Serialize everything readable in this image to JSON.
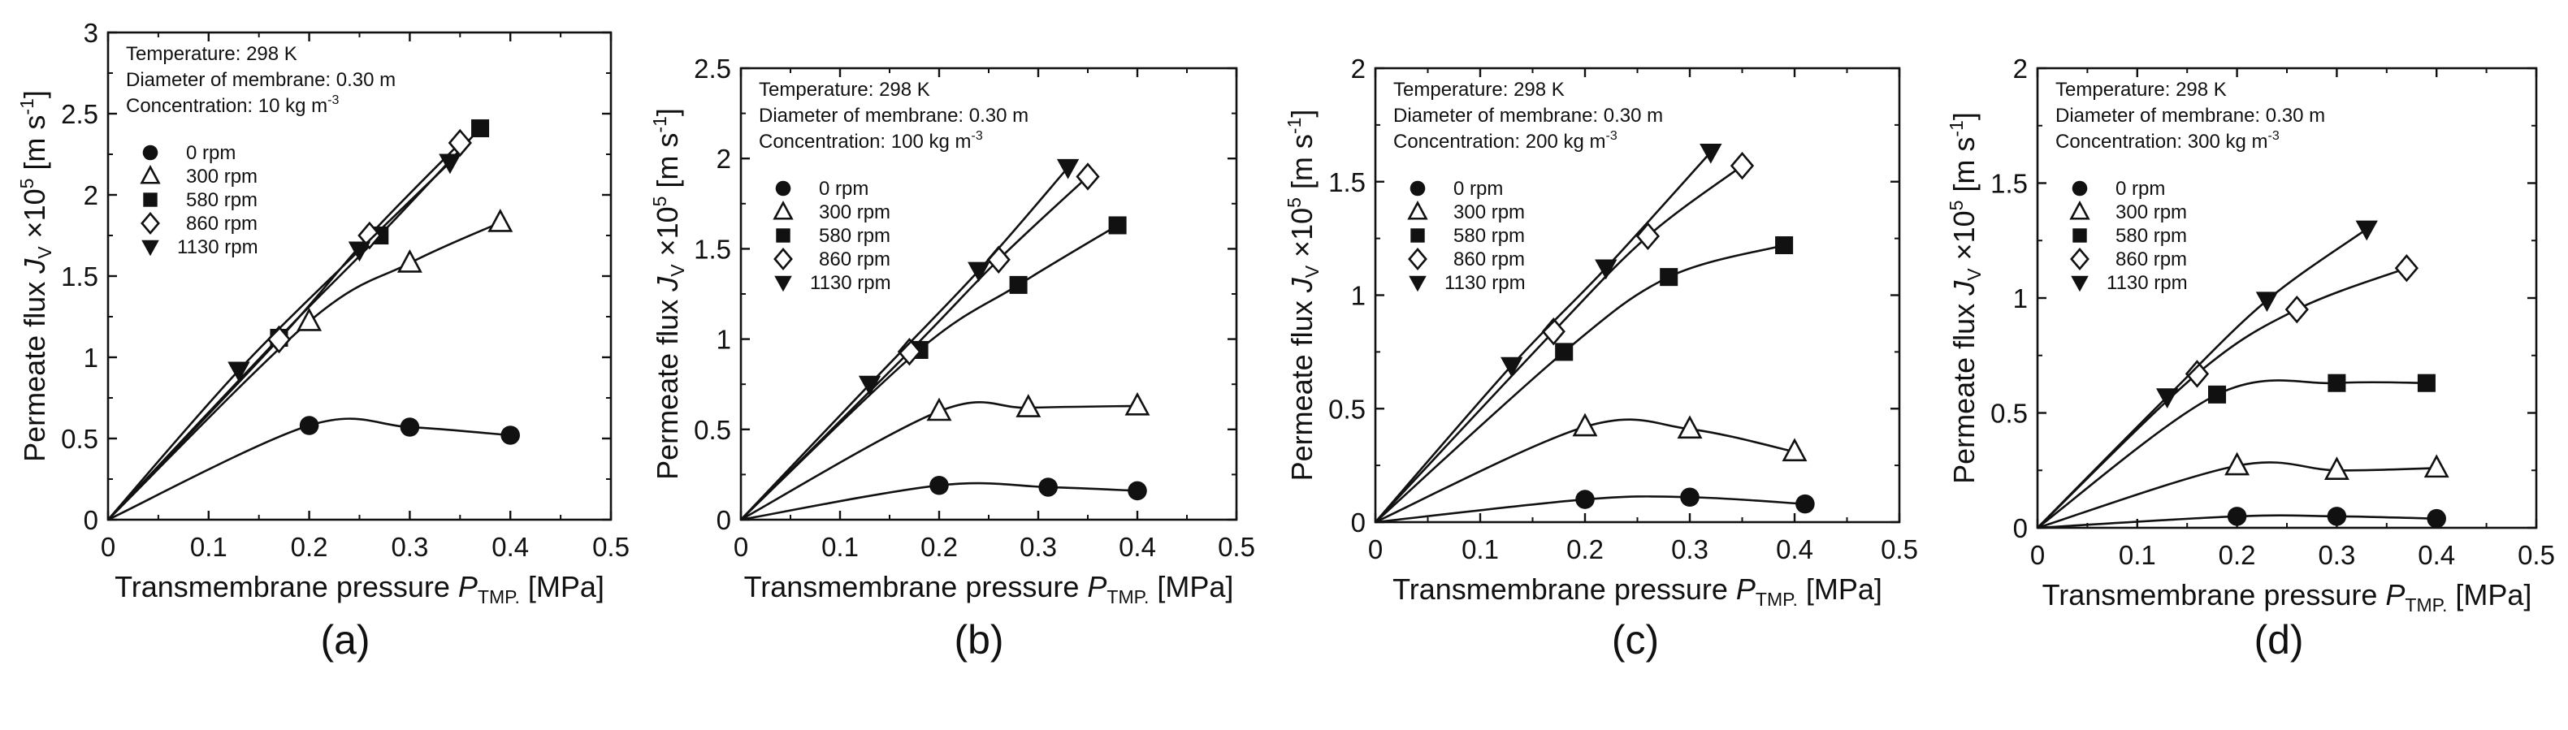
{
  "colors": {
    "ink": "#111111",
    "background": "#ffffff"
  },
  "chart_data": [
    {
      "type": "line",
      "panel_label": "(a)",
      "xlabel": "Transmembrane pressure P",
      "xlabel_sub": "TMP.",
      "xlabel_unit": "[MPa]",
      "ylabel": "Permeate flux J",
      "ylabel_sub": "V",
      "ylabel_factor": "×10",
      "ylabel_factor_sup": "5",
      "ylabel_unit": "[m s",
      "ylabel_unit_sup": "-1",
      "ylabel_close": "]",
      "xlim": [
        0,
        0.5
      ],
      "ylim": [
        0,
        3
      ],
      "xticks": [
        "0",
        "0.1",
        "0.2",
        "0.3",
        "0.4",
        "0.5"
      ],
      "yticks": [
        "0",
        "0.5",
        "1",
        "1.5",
        "2",
        "2.5",
        "3"
      ],
      "conditions": [
        "Temperature: 298 K",
        "Diameter of membrane: 0.30 m"
      ],
      "concentration_text": "Concentration: 10 kg m",
      "concentration_sup": "-3",
      "legend": [
        "0 rpm",
        "300 rpm",
        "580 rpm",
        "860 rpm",
        "1130 rpm"
      ],
      "series": [
        {
          "name": "0 rpm",
          "marker": "circle",
          "x": [
            0.2,
            0.3,
            0.4
          ],
          "y": [
            0.58,
            0.57,
            0.52
          ]
        },
        {
          "name": "300 rpm",
          "marker": "triangle-up",
          "x": [
            0.2,
            0.3,
            0.39
          ],
          "y": [
            1.22,
            1.58,
            1.83
          ]
        },
        {
          "name": "580 rpm",
          "marker": "square",
          "x": [
            0.17,
            0.27,
            0.37
          ],
          "y": [
            1.12,
            1.75,
            2.41
          ]
        },
        {
          "name": "860 rpm",
          "marker": "diamond",
          "x": [
            0.17,
            0.26,
            0.35
          ],
          "y": [
            1.11,
            1.75,
            2.32
          ]
        },
        {
          "name": "1130 rpm",
          "marker": "triangle-down",
          "x": [
            0.13,
            0.25,
            0.34
          ],
          "y": [
            0.92,
            1.66,
            2.2
          ]
        }
      ]
    },
    {
      "type": "line",
      "panel_label": "(b)",
      "xlabel": "Transmembrane pressure P",
      "xlabel_sub": "TMP.",
      "xlabel_unit": "[MPa]",
      "ylabel": "Permeate flux J",
      "ylabel_sub": "V",
      "ylabel_factor": "×10",
      "ylabel_factor_sup": "5",
      "ylabel_unit": "[m s",
      "ylabel_unit_sup": "-1",
      "ylabel_close": "]",
      "xlim": [
        0,
        0.5
      ],
      "ylim": [
        0,
        2.5
      ],
      "xticks": [
        "0",
        "0.1",
        "0.2",
        "0.3",
        "0.4",
        "0.5"
      ],
      "yticks": [
        "0",
        "0.5",
        "1",
        "1.5",
        "2",
        "2.5"
      ],
      "conditions": [
        "Temperature: 298 K",
        "Diameter of membrane: 0.30 m"
      ],
      "concentration_text": "Concentration: 100 kg m",
      "concentration_sup": "-3",
      "legend": [
        "0 rpm",
        "300 rpm",
        "580 rpm",
        "860 rpm",
        "1130 rpm"
      ],
      "series": [
        {
          "name": "0 rpm",
          "marker": "circle",
          "x": [
            0.2,
            0.31,
            0.4
          ],
          "y": [
            0.19,
            0.18,
            0.16
          ]
        },
        {
          "name": "300 rpm",
          "marker": "triangle-up",
          "x": [
            0.2,
            0.29,
            0.4
          ],
          "y": [
            0.6,
            0.62,
            0.63
          ]
        },
        {
          "name": "580 rpm",
          "marker": "square",
          "x": [
            0.18,
            0.28,
            0.38
          ],
          "y": [
            0.94,
            1.3,
            1.63
          ]
        },
        {
          "name": "860 rpm",
          "marker": "diamond",
          "x": [
            0.17,
            0.26,
            0.35
          ],
          "y": [
            0.93,
            1.44,
            1.9
          ]
        },
        {
          "name": "1130 rpm",
          "marker": "triangle-down",
          "x": [
            0.13,
            0.24,
            0.33
          ],
          "y": [
            0.75,
            1.38,
            1.95
          ]
        }
      ]
    },
    {
      "type": "line",
      "panel_label": "(c)",
      "xlabel": "Transmembrane pressure P",
      "xlabel_sub": "TMP.",
      "xlabel_unit": "[MPa]",
      "ylabel": "Permeate flux J",
      "ylabel_sub": "V",
      "ylabel_factor": "×10",
      "ylabel_factor_sup": "5",
      "ylabel_unit": "[m s",
      "ylabel_unit_sup": "-1",
      "ylabel_close": "]",
      "xlim": [
        0,
        0.5
      ],
      "ylim": [
        0,
        2
      ],
      "xticks": [
        "0",
        "0.1",
        "0.2",
        "0.3",
        "0.4",
        "0.5"
      ],
      "yticks": [
        "0",
        "0.5",
        "1",
        "1.5",
        "2"
      ],
      "conditions": [
        "Temperature: 298 K",
        "Diameter of membrane: 0.30 m"
      ],
      "concentration_text": "Concentration: 200 kg m",
      "concentration_sup": "-3",
      "legend": [
        "0 rpm",
        "300 rpm",
        "580 rpm",
        "860 rpm",
        "1130 rpm"
      ],
      "series": [
        {
          "name": "0 rpm",
          "marker": "circle",
          "x": [
            0.2,
            0.3,
            0.41
          ],
          "y": [
            0.1,
            0.11,
            0.08
          ]
        },
        {
          "name": "300 rpm",
          "marker": "triangle-up",
          "x": [
            0.2,
            0.3,
            0.4
          ],
          "y": [
            0.42,
            0.41,
            0.31
          ]
        },
        {
          "name": "580 rpm",
          "marker": "square",
          "x": [
            0.18,
            0.28,
            0.39
          ],
          "y": [
            0.75,
            1.08,
            1.22
          ]
        },
        {
          "name": "860 rpm",
          "marker": "diamond",
          "x": [
            0.17,
            0.26,
            0.35
          ],
          "y": [
            0.84,
            1.26,
            1.57
          ]
        },
        {
          "name": "1130 rpm",
          "marker": "triangle-down",
          "x": [
            0.13,
            0.22,
            0.32
          ],
          "y": [
            0.69,
            1.12,
            1.63
          ]
        }
      ]
    },
    {
      "type": "line",
      "panel_label": "(d)",
      "xlabel": "Transmembrane pressure P",
      "xlabel_sub": "TMP.",
      "xlabel_unit": "[MPa]",
      "ylabel": "Permeate flux J",
      "ylabel_sub": "V",
      "ylabel_factor": "×10",
      "ylabel_factor_sup": "5",
      "ylabel_unit": "[m s",
      "ylabel_unit_sup": "-1",
      "ylabel_close": "]",
      "xlim": [
        0,
        0.5
      ],
      "ylim": [
        0,
        2
      ],
      "xticks": [
        "0",
        "0.1",
        "0.2",
        "0.3",
        "0.4",
        "0.5"
      ],
      "yticks": [
        "0",
        "0.5",
        "1",
        "1.5",
        "2"
      ],
      "conditions": [
        "Temperature: 298 K",
        "Diameter of membrane: 0.30 m"
      ],
      "concentration_text": "Concentration: 300 kg m",
      "concentration_sup": "-3",
      "legend": [
        "0 rpm",
        "300 rpm",
        "580 rpm",
        "860 rpm",
        "1130 rpm"
      ],
      "series": [
        {
          "name": "0 rpm",
          "marker": "circle",
          "x": [
            0.2,
            0.3,
            0.4
          ],
          "y": [
            0.05,
            0.05,
            0.04
          ]
        },
        {
          "name": "300 rpm",
          "marker": "triangle-up",
          "x": [
            0.2,
            0.3,
            0.4
          ],
          "y": [
            0.27,
            0.25,
            0.26
          ]
        },
        {
          "name": "580 rpm",
          "marker": "square",
          "x": [
            0.18,
            0.3,
            0.39
          ],
          "y": [
            0.58,
            0.63,
            0.63
          ]
        },
        {
          "name": "860 rpm",
          "marker": "diamond",
          "x": [
            0.16,
            0.26,
            0.37
          ],
          "y": [
            0.67,
            0.95,
            1.13
          ]
        },
        {
          "name": "1130 rpm",
          "marker": "triangle-down",
          "x": [
            0.13,
            0.23,
            0.33
          ],
          "y": [
            0.57,
            0.99,
            1.3
          ]
        }
      ]
    }
  ]
}
